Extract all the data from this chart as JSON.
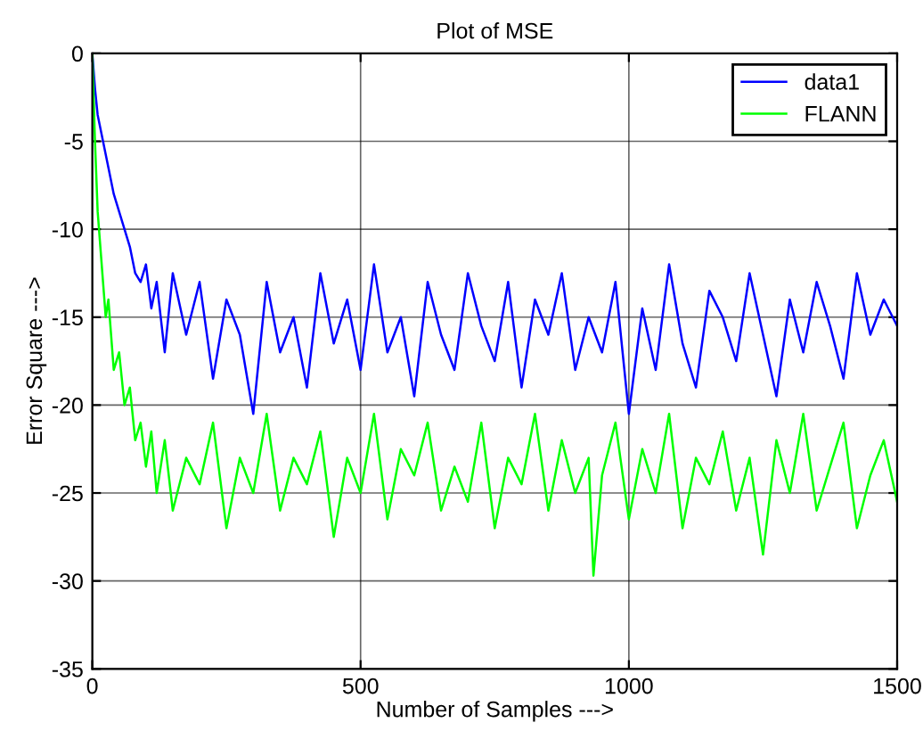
{
  "chart_data": {
    "type": "line",
    "title": "Plot of MSE",
    "xlabel": "Number of Samples --->",
    "ylabel": "Error Square --->",
    "xlim": [
      0,
      1500
    ],
    "ylim": [
      -35,
      0
    ],
    "xticks": [
      0,
      500,
      1000,
      1500
    ],
    "yticks": [
      -35,
      -30,
      -25,
      -20,
      -15,
      -10,
      -5,
      0
    ],
    "grid": true,
    "legend": "top right",
    "marker": "none",
    "line_style": "solid",
    "series": [
      {
        "name": "data1",
        "color": "#0000ff",
        "x": [
          0,
          5,
          10,
          20,
          30,
          40,
          50,
          60,
          70,
          80,
          90,
          100,
          110,
          120,
          135,
          150,
          175,
          200,
          225,
          250,
          275,
          300,
          325,
          350,
          375,
          400,
          425,
          450,
          475,
          500,
          525,
          550,
          575,
          600,
          625,
          650,
          675,
          700,
          725,
          750,
          775,
          800,
          825,
          850,
          875,
          900,
          925,
          950,
          975,
          1000,
          1025,
          1050,
          1075,
          1100,
          1125,
          1150,
          1175,
          1200,
          1225,
          1250,
          1275,
          1300,
          1325,
          1350,
          1375,
          1400,
          1425,
          1450,
          1475,
          1500
        ],
        "values": [
          0,
          -2,
          -3.5,
          -5,
          -6.5,
          -8,
          -9,
          -10,
          -11,
          -12.5,
          -13,
          -12,
          -14.5,
          -13,
          -17,
          -12.5,
          -16,
          -13,
          -18.5,
          -14,
          -16,
          -20.5,
          -13,
          -17,
          -15,
          -19,
          -12.5,
          -16.5,
          -14,
          -18,
          -12,
          -17,
          -15,
          -19.5,
          -13,
          -16,
          -18,
          -12.5,
          -15.5,
          -17.5,
          -13,
          -19,
          -14,
          -16,
          -12.5,
          -18,
          -15,
          -17,
          -13,
          -20.5,
          -14.5,
          -18,
          -12,
          -16.5,
          -19,
          -13.5,
          -15,
          -17.5,
          -12.5,
          -16,
          -19.5,
          -14,
          -17,
          -13,
          -15.5,
          -18.5,
          -12.5,
          -16,
          -14,
          -15.5
        ]
      },
      {
        "name": "FLANN",
        "color": "#00ff00",
        "x": [
          0,
          5,
          10,
          15,
          20,
          25,
          30,
          40,
          50,
          60,
          70,
          80,
          90,
          100,
          110,
          120,
          135,
          150,
          175,
          200,
          225,
          250,
          275,
          300,
          325,
          350,
          375,
          400,
          425,
          450,
          475,
          500,
          525,
          550,
          575,
          600,
          625,
          650,
          675,
          700,
          725,
          750,
          775,
          800,
          825,
          850,
          875,
          900,
          925,
          934,
          950,
          975,
          1000,
          1025,
          1050,
          1075,
          1100,
          1125,
          1150,
          1175,
          1200,
          1225,
          1250,
          1275,
          1300,
          1325,
          1350,
          1375,
          1400,
          1425,
          1450,
          1475,
          1500
        ],
        "values": [
          0,
          -5,
          -9,
          -11,
          -13,
          -15,
          -14,
          -18,
          -17,
          -20,
          -19,
          -22,
          -21,
          -23.5,
          -21.5,
          -25,
          -22,
          -26,
          -23,
          -24.5,
          -21,
          -27,
          -23,
          -25,
          -20.5,
          -26,
          -23,
          -24.5,
          -21.5,
          -27.5,
          -23,
          -25,
          -20.5,
          -26.5,
          -22.5,
          -24,
          -21,
          -26,
          -23.5,
          -25.5,
          -21,
          -27,
          -23,
          -24.5,
          -20.5,
          -26,
          -22,
          -25,
          -23,
          -29.7,
          -24,
          -21,
          -26.5,
          -22.5,
          -25,
          -20.5,
          -27,
          -23,
          -24.5,
          -21.5,
          -26,
          -23,
          -28.5,
          -22,
          -25,
          -20.5,
          -26,
          -23.5,
          -21,
          -27,
          -24,
          -22,
          -25.5
        ]
      }
    ]
  }
}
